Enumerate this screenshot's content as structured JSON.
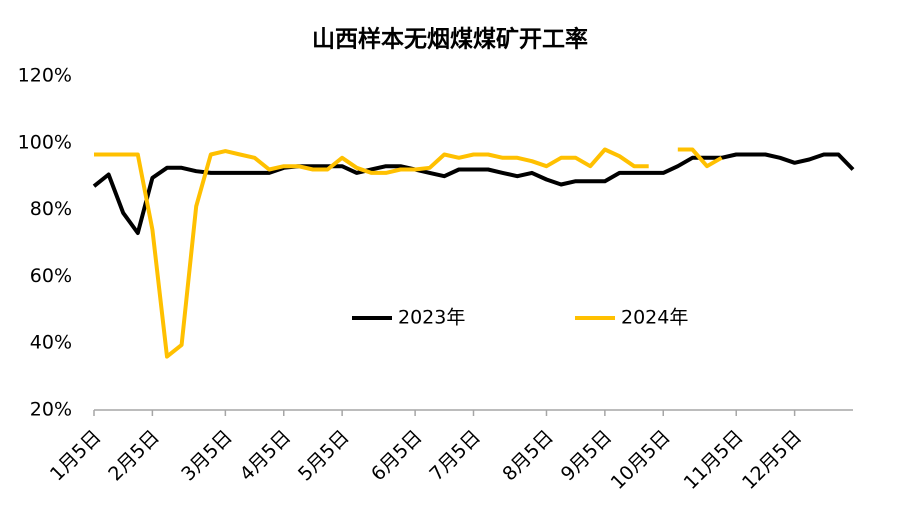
{
  "chart_data": {
    "type": "line",
    "title": "山西样本无烟煤煤矿开工率",
    "categories": [
      "1月5日",
      null,
      null,
      null,
      "2月5日",
      null,
      null,
      null,
      null,
      "3月5日",
      null,
      null,
      null,
      "4月5日",
      null,
      null,
      null,
      "5月5日",
      null,
      null,
      null,
      null,
      "6月5日",
      null,
      null,
      null,
      "7月5日",
      null,
      null,
      null,
      null,
      "8月5日",
      null,
      null,
      null,
      "9月5日",
      null,
      null,
      null,
      "10月5日",
      null,
      null,
      null,
      null,
      "11月5日",
      null,
      null,
      null,
      "12月5日",
      null,
      null,
      null,
      null
    ],
    "series": [
      {
        "name": "2023年",
        "color": "#000000",
        "values": [
          87,
          90.5,
          79,
          73,
          89.5,
          92.5,
          92.5,
          91.5,
          91,
          91,
          91,
          91,
          91,
          92.5,
          93,
          93,
          93,
          93,
          91,
          92,
          93,
          93,
          92,
          91,
          90,
          92,
          92,
          92,
          91,
          90,
          91,
          89,
          87.5,
          88.5,
          88.5,
          88.5,
          91,
          91,
          91,
          91,
          93,
          95.5,
          95.5,
          95.5,
          96.5,
          96.5,
          96.5,
          95.5,
          94,
          95,
          96.5,
          96.5,
          92
        ]
      },
      {
        "name": "2024年",
        "color": "#ffc000",
        "values": [
          96.5,
          96.5,
          96.5,
          96.5,
          74,
          36,
          39.5,
          81,
          96.5,
          97.5,
          96.5,
          95.5,
          92,
          93,
          93,
          92,
          92,
          95.5,
          92.5,
          91,
          91,
          92,
          92,
          92.5,
          96.5,
          95.5,
          96.5,
          96.5,
          95.5,
          95.5,
          94.5,
          93,
          95.5,
          95.5,
          93,
          98,
          96,
          93,
          93,
          null,
          98,
          98,
          93,
          95.5,
          null,
          null,
          null,
          null,
          null,
          null,
          null,
          null,
          null
        ]
      }
    ],
    "ylim": [
      20,
      120
    ],
    "yticks": [
      {
        "value": 20,
        "label": "20%"
      },
      {
        "value": 40,
        "label": "40%"
      },
      {
        "value": 60,
        "label": "60%"
      },
      {
        "value": 80,
        "label": "80%"
      },
      {
        "value": 100,
        "label": "100%"
      },
      {
        "value": 120,
        "label": "120%"
      }
    ],
    "grid": false,
    "legend": "center"
  }
}
